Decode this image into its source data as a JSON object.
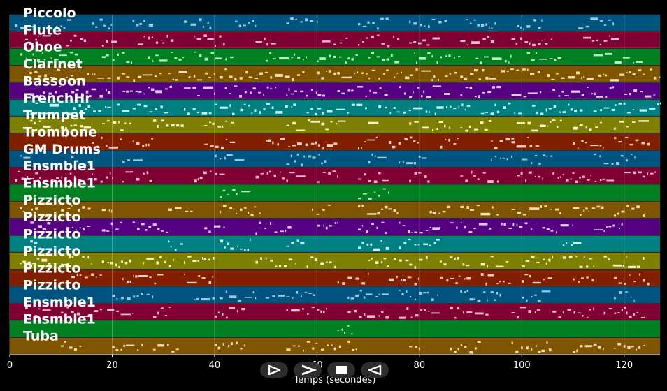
{
  "chart_data": {
    "type": "piano-roll",
    "xlabel": "Temps (secondes)",
    "xlim": [
      0,
      127
    ],
    "x_ticks": [
      0,
      20,
      40,
      60,
      80,
      100,
      120
    ],
    "grid": true,
    "tracks": [
      {
        "name": "Piccolo",
        "color": "#005580",
        "note_color": "#9ecae1"
      },
      {
        "name": "Flute",
        "color": "#800033",
        "note_color": "#f2b8c6"
      },
      {
        "name": "Oboe",
        "color": "#008020",
        "note_color": "#b8f0c0"
      },
      {
        "name": "Clarinet",
        "color": "#805500",
        "note_color": "#f5deb3"
      },
      {
        "name": "Bassoon",
        "color": "#550080",
        "note_color": "#e0c8f5"
      },
      {
        "name": "FrenchHr",
        "color": "#008080",
        "note_color": "#c8f5f5"
      },
      {
        "name": "Trumpet",
        "color": "#808000",
        "note_color": "#f5f5c8"
      },
      {
        "name": "Trombone",
        "color": "#802000",
        "note_color": "#f5d0c0"
      },
      {
        "name": "GM Drums",
        "color": "#005580",
        "note_color": "#9ecae1"
      },
      {
        "name": "Ensmble1",
        "color": "#800033",
        "note_color": "#f2b8c6"
      },
      {
        "name": "Ensmble1",
        "color": "#008020",
        "note_color": "#b8f0c0"
      },
      {
        "name": "Pizzicto",
        "color": "#805500",
        "note_color": "#f5deb3"
      },
      {
        "name": "Pizzicto",
        "color": "#550080",
        "note_color": "#e0c8f5"
      },
      {
        "name": "Pizzicto",
        "color": "#008080",
        "note_color": "#c8f5f5"
      },
      {
        "name": "Pizzicto",
        "color": "#808000",
        "note_color": "#f5f5c8"
      },
      {
        "name": "Pizzicto",
        "color": "#802000",
        "note_color": "#f5d0c0"
      },
      {
        "name": "Pizzicto",
        "color": "#005580",
        "note_color": "#9ecae1"
      },
      {
        "name": "Ensmble1",
        "color": "#800033",
        "note_color": "#f2b8c6"
      },
      {
        "name": "Ensmble1",
        "color": "#008020",
        "note_color": "#b8f0c0"
      },
      {
        "name": "Tuba",
        "color": "#805500",
        "note_color": "#f5deb3"
      }
    ],
    "activity": [
      [
        [
          1,
          5
        ],
        [
          9,
          12
        ],
        [
          16,
          20
        ],
        [
          24,
          28
        ],
        [
          34,
          40
        ],
        [
          44,
          48
        ],
        [
          54,
          60
        ],
        [
          68,
          74
        ],
        [
          78,
          86
        ],
        [
          89,
          95
        ],
        [
          99,
          104
        ],
        [
          111,
          118
        ]
      ],
      [
        [
          3,
          8
        ],
        [
          11,
          15
        ],
        [
          18,
          21
        ],
        [
          25,
          32
        ],
        [
          36,
          42
        ],
        [
          48,
          52
        ],
        [
          61,
          66
        ],
        [
          68,
          76
        ],
        [
          78,
          84
        ],
        [
          88,
          95
        ],
        [
          98,
          106
        ],
        [
          112,
          119
        ]
      ],
      [
        [
          2,
          7
        ],
        [
          8,
          14
        ],
        [
          18,
          24
        ],
        [
          27,
          34
        ],
        [
          36,
          44
        ],
        [
          50,
          58
        ],
        [
          60,
          68
        ],
        [
          70,
          76
        ],
        [
          79,
          88
        ],
        [
          91,
          98
        ],
        [
          101,
          108
        ],
        [
          114,
          124
        ]
      ],
      [
        [
          3,
          10
        ],
        [
          11,
          20
        ],
        [
          21,
          30
        ],
        [
          31,
          40
        ],
        [
          41,
          58
        ],
        [
          60,
          74
        ],
        [
          75,
          84
        ],
        [
          85,
          95
        ],
        [
          96,
          104
        ],
        [
          105,
          114
        ],
        [
          115,
          124
        ],
        [
          125,
          127
        ]
      ],
      [
        [
          4,
          10
        ],
        [
          12,
          20
        ],
        [
          22,
          32
        ],
        [
          34,
          40
        ],
        [
          42,
          52
        ],
        [
          54,
          62
        ],
        [
          64,
          74
        ],
        [
          76,
          86
        ],
        [
          88,
          96
        ],
        [
          98,
          104
        ],
        [
          106,
          118
        ],
        [
          120,
          126
        ]
      ],
      [
        [
          4,
          10
        ],
        [
          11,
          20
        ],
        [
          21,
          31
        ],
        [
          34,
          44
        ],
        [
          45,
          56
        ],
        [
          58,
          70
        ],
        [
          72,
          82
        ],
        [
          83,
          90
        ],
        [
          92,
          100
        ],
        [
          102,
          112
        ],
        [
          114,
          122
        ],
        [
          123,
          127
        ]
      ],
      [
        [
          4,
          8
        ],
        [
          10,
          16
        ],
        [
          18,
          24
        ],
        [
          28,
          34
        ],
        [
          38,
          44
        ],
        [
          54,
          66
        ],
        [
          70,
          72
        ],
        [
          78,
          86
        ],
        [
          88,
          94
        ],
        [
          99,
          108
        ],
        [
          110,
          116
        ],
        [
          118,
          125
        ]
      ],
      [
        [
          16,
          22
        ],
        [
          24,
          28
        ],
        [
          38,
          44
        ],
        [
          50,
          64
        ],
        [
          68,
          72
        ],
        [
          74,
          80
        ],
        [
          84,
          88
        ],
        [
          94,
          100
        ],
        [
          98,
          104
        ],
        [
          110,
          116
        ],
        [
          118,
          125
        ]
      ],
      [
        [
          2,
          4
        ],
        [
          12,
          16
        ],
        [
          22,
          26
        ],
        [
          40,
          46
        ],
        [
          54,
          62
        ],
        [
          70,
          74
        ],
        [
          76,
          82
        ],
        [
          94,
          98
        ],
        [
          100,
          106
        ],
        [
          114,
          122
        ]
      ],
      [
        [
          1,
          6
        ],
        [
          8,
          14
        ],
        [
          16,
          20
        ],
        [
          22,
          28
        ],
        [
          36,
          42
        ],
        [
          48,
          58
        ],
        [
          60,
          64
        ],
        [
          68,
          74
        ],
        [
          78,
          82
        ],
        [
          88,
          96
        ],
        [
          99,
          104
        ],
        [
          106,
          118
        ],
        [
          120,
          126
        ]
      ],
      [
        [
          41,
          47
        ],
        [
          68,
          74
        ]
      ],
      [
        [
          2,
          8
        ],
        [
          10,
          16
        ],
        [
          18,
          20
        ],
        [
          31,
          36
        ],
        [
          41,
          49
        ],
        [
          59,
          63
        ],
        [
          68,
          76
        ],
        [
          82,
          86
        ],
        [
          88,
          96
        ],
        [
          98,
          108
        ],
        [
          110,
          116
        ],
        [
          118,
          124
        ]
      ],
      [
        [
          4,
          8
        ],
        [
          11,
          16
        ],
        [
          18,
          22
        ],
        [
          24,
          31
        ],
        [
          38,
          42
        ],
        [
          48,
          55
        ],
        [
          60,
          64
        ],
        [
          68,
          74
        ],
        [
          76,
          84
        ],
        [
          86,
          94
        ],
        [
          96,
          102
        ],
        [
          104,
          110
        ],
        [
          114,
          120
        ]
      ],
      [
        [
          4,
          6
        ],
        [
          31,
          34
        ],
        [
          41,
          47
        ],
        [
          54,
          58
        ],
        [
          68,
          74
        ],
        [
          76,
          84
        ],
        [
          108,
          112
        ]
      ],
      [
        [
          2,
          8
        ],
        [
          10,
          16
        ],
        [
          18,
          24
        ],
        [
          26,
          32
        ],
        [
          34,
          40
        ],
        [
          48,
          56
        ],
        [
          58,
          64
        ],
        [
          70,
          74
        ],
        [
          75,
          82
        ],
        [
          84,
          90
        ],
        [
          92,
          98
        ],
        [
          100,
          106
        ],
        [
          108,
          114
        ],
        [
          116,
          124
        ]
      ],
      [
        [
          12,
          18
        ],
        [
          22,
          30
        ],
        [
          34,
          40
        ],
        [
          64,
          70
        ],
        [
          74,
          80
        ],
        [
          84,
          90
        ],
        [
          92,
          98
        ],
        [
          100,
          106
        ],
        [
          110,
          114
        ],
        [
          118,
          125
        ]
      ],
      [
        [
          20,
          28
        ],
        [
          36,
          40
        ],
        [
          41,
          48
        ],
        [
          50,
          60
        ],
        [
          66,
          74
        ],
        [
          76,
          84
        ],
        [
          88,
          96
        ],
        [
          100,
          106
        ],
        [
          118,
          122
        ]
      ],
      [
        [
          3,
          8
        ],
        [
          10,
          18
        ],
        [
          19,
          24
        ],
        [
          28,
          32
        ],
        [
          40,
          46
        ],
        [
          54,
          62
        ],
        [
          66,
          74
        ],
        [
          76,
          84
        ],
        [
          86,
          94
        ],
        [
          98,
          104
        ],
        [
          106,
          114
        ],
        [
          116,
          124
        ]
      ],
      [
        [
          64,
          67
        ]
      ],
      [
        [
          10,
          14
        ],
        [
          20,
          26
        ],
        [
          28,
          33
        ],
        [
          40,
          46
        ],
        [
          54,
          65
        ],
        [
          66,
          68
        ],
        [
          78,
          80
        ],
        [
          86,
          92
        ],
        [
          98,
          106
        ],
        [
          110,
          116
        ],
        [
          118,
          124
        ]
      ]
    ]
  },
  "controls": {
    "play": "play-icon",
    "forward": "chevron-right-icon",
    "stop": "stop-icon",
    "rewind": "rewind-icon"
  }
}
